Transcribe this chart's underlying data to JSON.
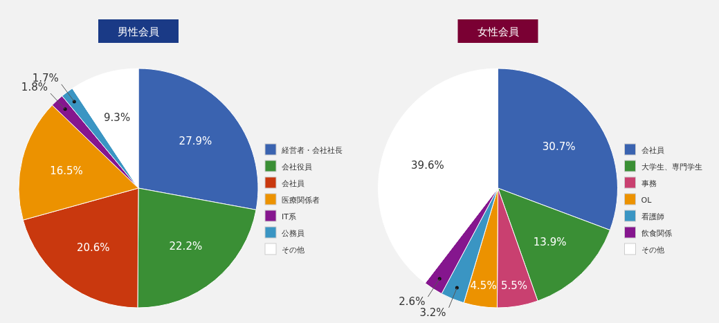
{
  "chart_data": [
    {
      "type": "pie",
      "title": "男性会員",
      "value_labels": [
        "27.9%",
        "22.2%",
        "20.6%",
        "16.5%",
        "1.8%",
        "1.7%",
        "9.3%"
      ],
      "categories": [
        "経営者・会社社長",
        "会社役員",
        "会社員",
        "医療関係者",
        "IT系",
        "公務員",
        "その他"
      ],
      "values": [
        27.9,
        22.2,
        20.6,
        16.5,
        1.8,
        1.7,
        9.3
      ],
      "colors": [
        "#3a63b0",
        "#3a8f35",
        "#c9380e",
        "#ec9200",
        "#85168e",
        "#3a95c3",
        "#ffffff"
      ],
      "legend": "right"
    },
    {
      "type": "pie",
      "title": "女性会員",
      "value_labels": [
        "30.7%",
        "13.9%",
        "5.5%",
        "4.5%",
        "3.2%",
        "2.6%",
        "39.6%"
      ],
      "categories": [
        "会社員",
        "大学生、専門学生",
        "事務",
        "OL",
        "看護師",
        "飲食関係",
        "その他"
      ],
      "values": [
        30.7,
        13.9,
        5.5,
        4.5,
        3.2,
        2.6,
        39.6
      ],
      "colors": [
        "#3a63b0",
        "#3a8f35",
        "#c94070",
        "#ec9200",
        "#3a95c3",
        "#85168e",
        "#ffffff"
      ],
      "legend": "right"
    }
  ]
}
